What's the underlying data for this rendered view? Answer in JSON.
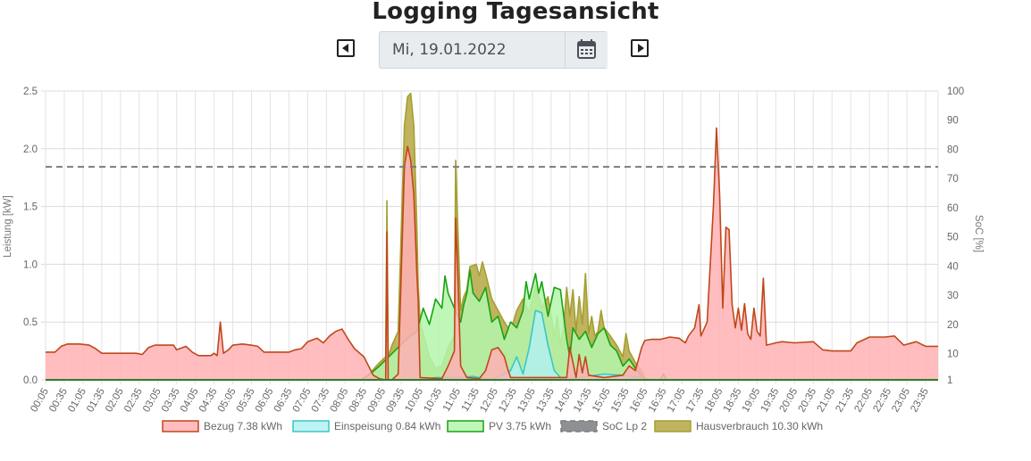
{
  "header": {
    "title": "Logging Tagesansicht",
    "date_value": "Mi, 19.01.2022",
    "prev_icon": "caret-left-square-icon",
    "next_icon": "caret-right-square-icon",
    "calendar_icon": "calendar-icon"
  },
  "chart_data": {
    "type": "area",
    "title": "",
    "ylabel": "Leistung [kW]",
    "y2label": "SoC [%]",
    "ylim": [
      0,
      2.5
    ],
    "y2lim": [
      1,
      100
    ],
    "yticks": [
      "0.0",
      "0.5",
      "1.0",
      "1.5",
      "2.0",
      "2.5"
    ],
    "y2ticks": [
      "1",
      "10",
      "20",
      "30",
      "40",
      "50",
      "60",
      "70",
      "80",
      "90",
      "100"
    ],
    "x_range": [
      "00:05",
      "23:55"
    ],
    "xticks": [
      "00:05",
      "00:35",
      "01:05",
      "01:35",
      "02:05",
      "02:35",
      "03:05",
      "03:35",
      "04:05",
      "04:35",
      "05:05",
      "05:35",
      "06:05",
      "06:35",
      "07:05",
      "07:35",
      "08:05",
      "08:35",
      "09:05",
      "09:35",
      "10:05",
      "10:35",
      "11:05",
      "11:35",
      "12:05",
      "12:35",
      "13:05",
      "13:35",
      "14:05",
      "14:35",
      "15:05",
      "15:35",
      "16:05",
      "16:35",
      "17:05",
      "17:35",
      "18:05",
      "18:35",
      "19:05",
      "19:35",
      "20:05",
      "20:35",
      "21:05",
      "21:35",
      "22:05",
      "22:35",
      "23:05",
      "23:35"
    ],
    "grid": true,
    "legend_position": "bottom",
    "series": [
      {
        "name": "Bezug 7.38 kWh",
        "axis": "left",
        "fill": "#ffb1b5",
        "stroke": "#c0471b",
        "points": [
          [
            "00:05",
            0.24
          ],
          [
            "00:20",
            0.24
          ],
          [
            "00:30",
            0.29
          ],
          [
            "00:40",
            0.31
          ],
          [
            "01:00",
            0.31
          ],
          [
            "01:15",
            0.3
          ],
          [
            "01:25",
            0.27
          ],
          [
            "01:35",
            0.23
          ],
          [
            "02:00",
            0.23
          ],
          [
            "02:30",
            0.23
          ],
          [
            "02:40",
            0.22
          ],
          [
            "02:50",
            0.28
          ],
          [
            "03:00",
            0.3
          ],
          [
            "03:30",
            0.3
          ],
          [
            "03:35",
            0.26
          ],
          [
            "03:50",
            0.29
          ],
          [
            "04:00",
            0.24
          ],
          [
            "04:10",
            0.21
          ],
          [
            "04:30",
            0.21
          ],
          [
            "04:35",
            0.23
          ],
          [
            "04:40",
            0.21
          ],
          [
            "04:45",
            0.5
          ],
          [
            "04:50",
            0.23
          ],
          [
            "04:58",
            0.26
          ],
          [
            "05:05",
            0.3
          ],
          [
            "05:20",
            0.31
          ],
          [
            "05:35",
            0.3
          ],
          [
            "05:45",
            0.29
          ],
          [
            "05:55",
            0.24
          ],
          [
            "06:05",
            0.24
          ],
          [
            "06:20",
            0.24
          ],
          [
            "06:35",
            0.24
          ],
          [
            "06:45",
            0.26
          ],
          [
            "06:55",
            0.27
          ],
          [
            "07:05",
            0.33
          ],
          [
            "07:20",
            0.36
          ],
          [
            "07:30",
            0.32
          ],
          [
            "07:40",
            0.38
          ],
          [
            "07:50",
            0.42
          ],
          [
            "08:00",
            0.44
          ],
          [
            "08:10",
            0.35
          ],
          [
            "08:20",
            0.27
          ],
          [
            "08:35",
            0.2
          ],
          [
            "08:50",
            0.04
          ],
          [
            "09:00",
            0.01
          ],
          [
            "09:10",
            0.0
          ],
          [
            "09:12",
            1.28
          ],
          [
            "09:14",
            0.0
          ],
          [
            "09:20",
            0.0
          ],
          [
            "09:30",
            0.05
          ],
          [
            "09:40",
            1.85
          ],
          [
            "09:45",
            2.02
          ],
          [
            "09:50",
            1.9
          ],
          [
            "09:55",
            1.6
          ],
          [
            "10:00",
            0.9
          ],
          [
            "10:02",
            0.68
          ],
          [
            "10:05",
            0.02
          ],
          [
            "10:40",
            0.01
          ],
          [
            "10:50",
            0.12
          ],
          [
            "11:00",
            0.25
          ],
          [
            "11:02",
            1.4
          ],
          [
            "11:05",
            1.0
          ],
          [
            "11:10",
            0.12
          ],
          [
            "11:20",
            0.02
          ],
          [
            "11:40",
            0.01
          ],
          [
            "11:50",
            0.08
          ],
          [
            "12:00",
            0.26
          ],
          [
            "12:10",
            0.28
          ],
          [
            "12:20",
            0.2
          ],
          [
            "12:25",
            0.1
          ],
          [
            "12:30",
            0.02
          ],
          [
            "14:00",
            0.02
          ],
          [
            "14:05",
            0.28
          ],
          [
            "14:10",
            0.15
          ],
          [
            "14:15",
            0.02
          ],
          [
            "14:20",
            0.22
          ],
          [
            "14:25",
            0.06
          ],
          [
            "14:30",
            0.2
          ],
          [
            "14:35",
            0.04
          ],
          [
            "15:00",
            0.02
          ],
          [
            "15:30",
            0.04
          ],
          [
            "15:40",
            0.12
          ],
          [
            "15:50",
            0.08
          ],
          [
            "16:00",
            0.28
          ],
          [
            "16:05",
            0.34
          ],
          [
            "16:15",
            0.35
          ],
          [
            "16:30",
            0.35
          ],
          [
            "16:45",
            0.37
          ],
          [
            "17:00",
            0.36
          ],
          [
            "17:10",
            0.32
          ],
          [
            "17:15",
            0.38
          ],
          [
            "17:25",
            0.45
          ],
          [
            "17:32",
            0.65
          ],
          [
            "17:35",
            0.38
          ],
          [
            "17:45",
            0.5
          ],
          [
            "17:55",
            1.5
          ],
          [
            "18:00",
            2.18
          ],
          [
            "18:05",
            1.6
          ],
          [
            "18:10",
            0.62
          ],
          [
            "18:15",
            1.32
          ],
          [
            "18:20",
            1.3
          ],
          [
            "18:25",
            0.65
          ],
          [
            "18:30",
            0.45
          ],
          [
            "18:35",
            0.62
          ],
          [
            "18:40",
            0.43
          ],
          [
            "18:45",
            0.66
          ],
          [
            "18:50",
            0.4
          ],
          [
            "18:55",
            0.35
          ],
          [
            "19:00",
            0.62
          ],
          [
            "19:05",
            0.42
          ],
          [
            "19:10",
            0.38
          ],
          [
            "19:15",
            0.88
          ],
          [
            "19:20",
            0.3
          ],
          [
            "19:35",
            0.32
          ],
          [
            "19:45",
            0.33
          ],
          [
            "20:05",
            0.32
          ],
          [
            "20:35",
            0.33
          ],
          [
            "20:50",
            0.26
          ],
          [
            "21:05",
            0.25
          ],
          [
            "21:35",
            0.25
          ],
          [
            "21:45",
            0.32
          ],
          [
            "22:05",
            0.37
          ],
          [
            "22:30",
            0.37
          ],
          [
            "22:45",
            0.38
          ],
          [
            "23:00",
            0.3
          ],
          [
            "23:20",
            0.33
          ],
          [
            "23:35",
            0.29
          ],
          [
            "23:55",
            0.29
          ]
        ]
      },
      {
        "name": "Einspeisung 0.84 kWh",
        "axis": "left",
        "fill": "#b2f1f0",
        "stroke": "#3cc6c4",
        "points": [
          [
            "00:05",
            0
          ],
          [
            "09:00",
            0
          ],
          [
            "09:30",
            0
          ],
          [
            "10:05",
            0
          ],
          [
            "10:30",
            0.02
          ],
          [
            "11:10",
            0.02
          ],
          [
            "11:30",
            0.03
          ],
          [
            "12:00",
            0
          ],
          [
            "12:30",
            0.08
          ],
          [
            "12:40",
            0.2
          ],
          [
            "12:50",
            0.05
          ],
          [
            "13:00",
            0.28
          ],
          [
            "13:10",
            0.6
          ],
          [
            "13:20",
            0.58
          ],
          [
            "13:30",
            0.3
          ],
          [
            "13:40",
            0.08
          ],
          [
            "13:50",
            0.02
          ],
          [
            "14:20",
            0.02
          ],
          [
            "15:00",
            0.05
          ],
          [
            "15:30",
            0.04
          ],
          [
            "16:00",
            0.02
          ],
          [
            "16:10",
            0
          ],
          [
            "23:55",
            0
          ]
        ]
      },
      {
        "name": "PV 3.75 kWh",
        "axis": "left",
        "fill": "#b4f6ac",
        "stroke": "#19a212",
        "points": [
          [
            "00:05",
            0
          ],
          [
            "08:30",
            0
          ],
          [
            "08:45",
            0.05
          ],
          [
            "09:00",
            0.12
          ],
          [
            "09:15",
            0.2
          ],
          [
            "09:30",
            0.28
          ],
          [
            "09:45",
            0.36
          ],
          [
            "10:00",
            0.42
          ],
          [
            "10:10",
            0.62
          ],
          [
            "10:20",
            0.48
          ],
          [
            "10:30",
            0.7
          ],
          [
            "10:40",
            0.62
          ],
          [
            "10:45",
            0.9
          ],
          [
            "10:50",
            0.75
          ],
          [
            "11:00",
            0.62
          ],
          [
            "11:10",
            0.5
          ],
          [
            "11:15",
            0.65
          ],
          [
            "11:20",
            0.75
          ],
          [
            "11:25",
            0.95
          ],
          [
            "11:30",
            0.75
          ],
          [
            "11:40",
            0.68
          ],
          [
            "11:50",
            0.8
          ],
          [
            "12:00",
            0.5
          ],
          [
            "12:10",
            0.55
          ],
          [
            "12:20",
            0.35
          ],
          [
            "12:30",
            0.5
          ],
          [
            "12:40",
            0.45
          ],
          [
            "12:50",
            0.6
          ],
          [
            "12:55",
            0.85
          ],
          [
            "13:00",
            0.7
          ],
          [
            "13:10",
            0.92
          ],
          [
            "13:15",
            0.75
          ],
          [
            "13:20",
            0.85
          ],
          [
            "13:30",
            0.55
          ],
          [
            "13:40",
            0.8
          ],
          [
            "13:50",
            0.78
          ],
          [
            "14:00",
            0.35
          ],
          [
            "14:05",
            0.2
          ],
          [
            "14:10",
            0.45
          ],
          [
            "14:20",
            0.35
          ],
          [
            "14:30",
            0.42
          ],
          [
            "14:40",
            0.28
          ],
          [
            "14:50",
            0.4
          ],
          [
            "15:00",
            0.45
          ],
          [
            "15:10",
            0.3
          ],
          [
            "15:20",
            0.25
          ],
          [
            "15:30",
            0.12
          ],
          [
            "15:40",
            0.18
          ],
          [
            "15:50",
            0.1
          ],
          [
            "16:00",
            0.03
          ],
          [
            "16:10",
            0
          ],
          [
            "16:30",
            0
          ],
          [
            "16:35",
            0.05
          ],
          [
            "16:40",
            0
          ],
          [
            "23:55",
            0
          ]
        ]
      },
      {
        "name": "SoC Lp 2",
        "axis": "right",
        "fill": "#7a7c80",
        "stroke": "#7a7c80",
        "dash": true,
        "points": [
          [
            "00:05",
            74
          ],
          [
            "23:55",
            74
          ]
        ]
      },
      {
        "name": "Hausverbrauch 10.30 kWh",
        "axis": "left",
        "fill": "#b5a744",
        "stroke": "#a3a030",
        "points": [
          [
            "00:05",
            0
          ],
          [
            "08:35",
            0
          ],
          [
            "08:45",
            0.06
          ],
          [
            "09:00",
            0.15
          ],
          [
            "09:10",
            0.2
          ],
          [
            "09:12",
            1.55
          ],
          [
            "09:14",
            0.2
          ],
          [
            "09:20",
            0.3
          ],
          [
            "09:30",
            0.42
          ],
          [
            "09:40",
            2.2
          ],
          [
            "09:45",
            2.45
          ],
          [
            "09:50",
            2.48
          ],
          [
            "09:55",
            2.2
          ],
          [
            "10:00",
            1.3
          ],
          [
            "10:02",
            0.8
          ],
          [
            "10:05",
            0.5
          ],
          [
            "10:20",
            0.2
          ],
          [
            "10:30",
            0.1
          ],
          [
            "10:40",
            0.12
          ],
          [
            "10:50",
            0.28
          ],
          [
            "11:00",
            0.38
          ],
          [
            "11:02",
            1.9
          ],
          [
            "11:05",
            1.4
          ],
          [
            "11:10",
            0.6
          ],
          [
            "11:15",
            0.72
          ],
          [
            "11:20",
            0.78
          ],
          [
            "11:25",
            0.98
          ],
          [
            "11:35",
            1.0
          ],
          [
            "11:40",
            0.9
          ],
          [
            "11:45",
            1.02
          ],
          [
            "11:50",
            0.92
          ],
          [
            "12:00",
            0.7
          ],
          [
            "12:10",
            0.6
          ],
          [
            "12:20",
            0.5
          ],
          [
            "12:30",
            0.42
          ],
          [
            "12:40",
            0.6
          ],
          [
            "12:50",
            0.7
          ],
          [
            "13:00",
            0.58
          ],
          [
            "13:10",
            0.82
          ],
          [
            "13:20",
            0.62
          ],
          [
            "13:30",
            0.72
          ],
          [
            "13:35",
            0.55
          ],
          [
            "13:40",
            0.38
          ],
          [
            "13:45",
            0.55
          ],
          [
            "13:50",
            0.3
          ],
          [
            "13:55",
            0.45
          ],
          [
            "14:00",
            0.8
          ],
          [
            "14:05",
            0.55
          ],
          [
            "14:10",
            0.78
          ],
          [
            "14:15",
            0.42
          ],
          [
            "14:20",
            0.72
          ],
          [
            "14:25",
            0.48
          ],
          [
            "14:30",
            0.92
          ],
          [
            "14:35",
            0.4
          ],
          [
            "14:40",
            0.55
          ],
          [
            "14:45",
            0.38
          ],
          [
            "14:50",
            0.42
          ],
          [
            "14:55",
            0.6
          ],
          [
            "15:00",
            0.45
          ],
          [
            "15:10",
            0.38
          ],
          [
            "15:20",
            0.3
          ],
          [
            "15:30",
            0.2
          ],
          [
            "15:35",
            0.4
          ],
          [
            "15:40",
            0.25
          ],
          [
            "15:50",
            0.15
          ],
          [
            "16:00",
            0.08
          ],
          [
            "16:05",
            0
          ],
          [
            "23:55",
            0
          ]
        ]
      }
    ]
  }
}
